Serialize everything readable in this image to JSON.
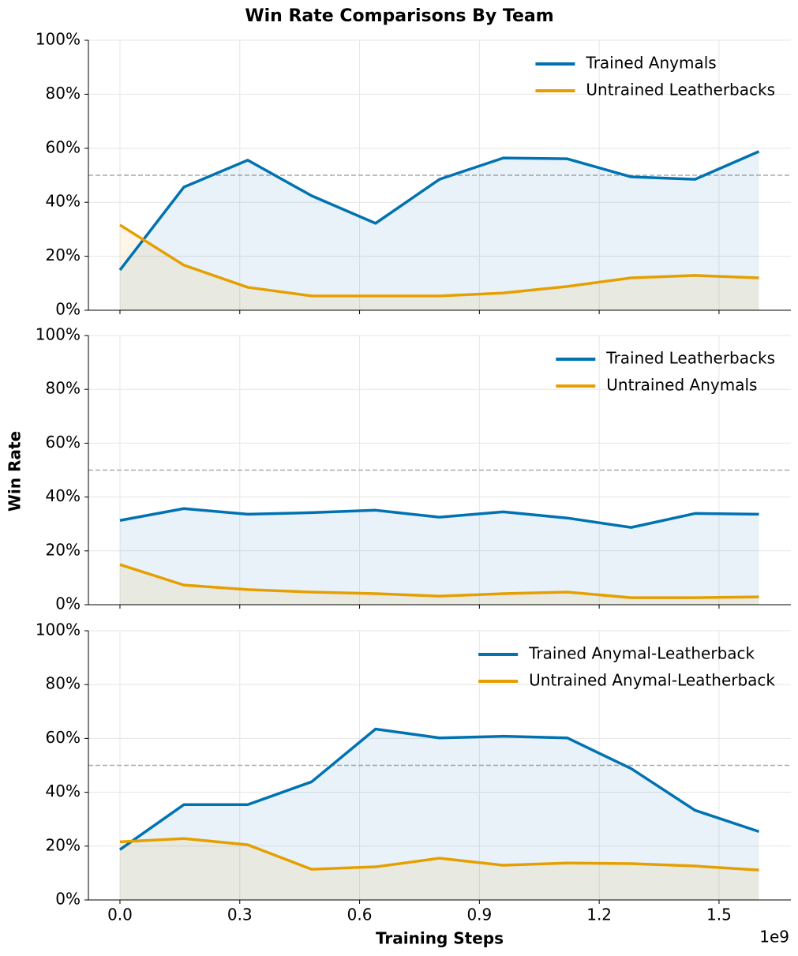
{
  "figure": {
    "title": "Win Rate Comparisons By Team",
    "xlabel": "Training Steps",
    "ylabel": "Win Rate",
    "x_offset_label": "1e9"
  },
  "chart_data": [
    {
      "type": "line",
      "x": [
        0,
        0.16,
        0.32,
        0.48,
        0.64,
        0.8,
        0.96,
        1.12,
        1.28,
        1.44,
        1.6
      ],
      "series": [
        {
          "name": "Trained Anymals",
          "color": "#0072b2",
          "values": [
            14.9,
            45.6,
            55.6,
            42.4,
            32.2,
            48.5,
            56.4,
            56.1,
            49.4,
            48.5,
            58.8
          ]
        },
        {
          "name": "Untrained Leatherbacks",
          "color": "#e69f00",
          "values": [
            31.6,
            16.7,
            8.5,
            5.3,
            5.3,
            5.3,
            6.4,
            8.8,
            12.0,
            12.9,
            12.0
          ]
        }
      ],
      "xlim": [
        -0.079,
        1.68
      ],
      "xticks": [
        {
          "value": 0,
          "label": "0.0"
        },
        0.3,
        0.6,
        0.9,
        1.2,
        1.5
      ],
      "show_xtick_labels": false,
      "ylim": [
        0,
        100
      ],
      "yticks": [
        {
          "value": 0,
          "label": "0%"
        },
        {
          "value": 20,
          "label": "20%"
        },
        {
          "value": 40,
          "label": "40%"
        },
        {
          "value": 60,
          "label": "60%"
        },
        {
          "value": 80,
          "label": "80%"
        },
        {
          "value": 100,
          "label": "100%"
        }
      ],
      "reference_line": 50,
      "grid": true,
      "fill": true,
      "legend": "upper right"
    },
    {
      "type": "line",
      "x": [
        0,
        0.16,
        0.32,
        0.48,
        0.64,
        0.8,
        0.96,
        1.12,
        1.28,
        1.44,
        1.6
      ],
      "series": [
        {
          "name": "Trained Leatherbacks",
          "color": "#0072b2",
          "values": [
            31.3,
            35.7,
            33.6,
            34.2,
            35.1,
            32.5,
            34.5,
            32.2,
            28.7,
            33.9,
            33.6
          ]
        },
        {
          "name": "Untrained Anymals",
          "color": "#e69f00",
          "values": [
            14.9,
            7.3,
            5.6,
            4.7,
            4.1,
            3.2,
            4.1,
            4.7,
            2.6,
            2.6,
            2.9
          ]
        }
      ],
      "xlim": [
        -0.079,
        1.68
      ],
      "xticks": [
        {
          "value": 0,
          "label": "0.0"
        },
        0.3,
        0.6,
        0.9,
        1.2,
        1.5
      ],
      "show_xtick_labels": false,
      "ylim": [
        0,
        100
      ],
      "yticks": [
        {
          "value": 0,
          "label": "0%"
        },
        {
          "value": 20,
          "label": "20%"
        },
        {
          "value": 40,
          "label": "40%"
        },
        {
          "value": 60,
          "label": "60%"
        },
        {
          "value": 80,
          "label": "80%"
        },
        {
          "value": 100,
          "label": "100%"
        }
      ],
      "reference_line": 50,
      "grid": true,
      "fill": true,
      "legend": "upper right"
    },
    {
      "type": "line",
      "x": [
        0,
        0.16,
        0.32,
        0.48,
        0.64,
        0.8,
        0.96,
        1.12,
        1.28,
        1.44,
        1.6
      ],
      "series": [
        {
          "name": "Trained Anymal-Leatherback",
          "color": "#0072b2",
          "values": [
            18.7,
            35.4,
            35.4,
            43.9,
            63.5,
            60.2,
            60.8,
            60.2,
            48.8,
            33.3,
            25.4
          ]
        },
        {
          "name": "Untrained Anymal-Leatherback",
          "color": "#e69f00",
          "values": [
            21.6,
            22.8,
            20.5,
            11.4,
            12.3,
            15.5,
            12.9,
            13.7,
            13.5,
            12.6,
            11.1
          ]
        }
      ],
      "xlim": [
        -0.079,
        1.68
      ],
      "xticks": [
        {
          "value": 0,
          "label": "0.0"
        },
        0.3,
        0.6,
        0.9,
        1.2,
        1.5
      ],
      "show_xtick_labels": true,
      "ylim": [
        0,
        100
      ],
      "yticks": [
        {
          "value": 0,
          "label": "0%"
        },
        {
          "value": 20,
          "label": "20%"
        },
        {
          "value": 40,
          "label": "40%"
        },
        {
          "value": 60,
          "label": "60%"
        },
        {
          "value": 80,
          "label": "80%"
        },
        {
          "value": 100,
          "label": "100%"
        }
      ],
      "reference_line": 50,
      "grid": true,
      "fill": true,
      "legend": "upper right"
    }
  ]
}
